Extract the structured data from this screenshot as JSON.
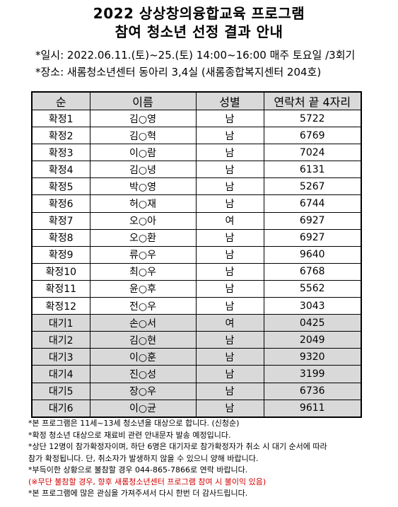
{
  "title_line1": "2022 상상창의융합교육 프로그램",
  "title_line2": "참여 청소년 선정 결과 안내",
  "schedule": "*일시: 2022.06.11.(토)~25.(토) 14:00~16:00 매주 토요일 /3회기",
  "location": "*장소: 새롬청소년센터 동아리 3,4실 (새롬종합복지센터 204호)",
  "table": {
    "headers": [
      "순",
      "이름",
      "성별",
      "연락처 끝 4자리"
    ],
    "rows": [
      {
        "rank": "확정1",
        "name": "김○영",
        "gender": "남",
        "phone": "5722"
      },
      {
        "rank": "확정2",
        "name": "김○혁",
        "gender": "남",
        "phone": "6769"
      },
      {
        "rank": "확정3",
        "name": "이○람",
        "gender": "남",
        "phone": "7024"
      },
      {
        "rank": "확정4",
        "name": "김○녕",
        "gender": "남",
        "phone": "6131"
      },
      {
        "rank": "확정5",
        "name": "박○영",
        "gender": "남",
        "phone": "5267"
      },
      {
        "rank": "확정6",
        "name": "허○재",
        "gender": "남",
        "phone": "6744"
      },
      {
        "rank": "확정7",
        "name": "오○아",
        "gender": "여",
        "phone": "6927"
      },
      {
        "rank": "확정8",
        "name": "오○환",
        "gender": "남",
        "phone": "6927"
      },
      {
        "rank": "확정9",
        "name": "류○우",
        "gender": "남",
        "phone": "9640"
      },
      {
        "rank": "확정10",
        "name": "최○우",
        "gender": "남",
        "phone": "6768"
      },
      {
        "rank": "확정11",
        "name": "윤○후",
        "gender": "남",
        "phone": "5562"
      },
      {
        "rank": "확정12",
        "name": "전○우",
        "gender": "남",
        "phone": "3043"
      },
      {
        "rank": "대기1",
        "name": "손○서",
        "gender": "여",
        "phone": "0425"
      },
      {
        "rank": "대기2",
        "name": "김○현",
        "gender": "남",
        "phone": "2049"
      },
      {
        "rank": "대기3",
        "name": "이○훈",
        "gender": "남",
        "phone": "9320"
      },
      {
        "rank": "대기4",
        "name": "진○성",
        "gender": "남",
        "phone": "3199"
      },
      {
        "rank": "대기5",
        "name": "장○우",
        "gender": "남",
        "phone": "6736"
      },
      {
        "rank": "대기6",
        "name": "이○균",
        "gender": "남",
        "phone": "9611"
      }
    ]
  },
  "notes": [
    "*본 프로그램은 11세~13세 청소년을 대상으로 합니다. (신청순)",
    "*확정 청소년 대상으로 재료비 관련 안내문자 발송 예정입니다.",
    "*상단 12명이 참가확정자이며, 하단 6명은 대기자로 참가확정자가 취소 시 대기 순서에 따라",
    "참가 확정됩니다. 단, 취소자가 발생하지 않을 수 있으니 양해 바랍니다.",
    "*부득이한 상황으로 불참할 경우 044-865-7866로 연락 바랍니다.",
    "(※무단 불참할 경우, 향후 새롬청소년센터 프로그램 참여 시 불이익 있음)",
    "*본 프로그램에 많은 관심을 가져주셔서 다시 한번 더 감사드립니다."
  ],
  "colors": {
    "waitlist_bg": "#d9d9d9",
    "header_bg": "#d9d9d9",
    "warning_text": "#d40000"
  }
}
